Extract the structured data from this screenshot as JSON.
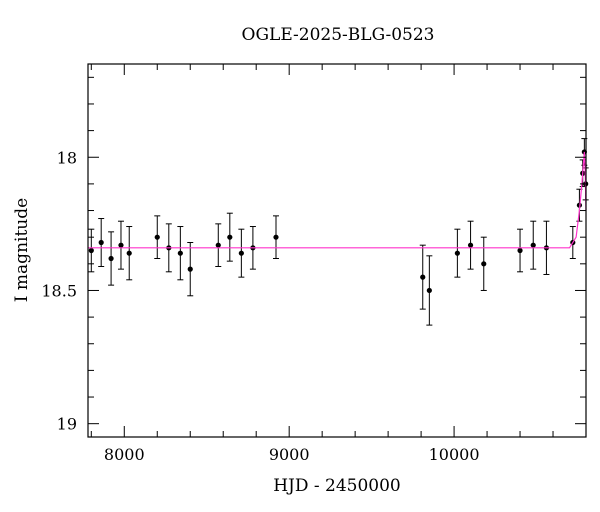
{
  "chart_data": {
    "type": "scatter",
    "title": "OGLE-2025-BLG-0523",
    "xlabel": "HJD - 2450000",
    "ylabel": "I magnitude",
    "xlim": [
      7780,
      10800
    ],
    "ylim": [
      19.05,
      17.65
    ],
    "y_inverted": true,
    "x_ticks": [
      8000,
      9000,
      10000
    ],
    "y_ticks": [
      18,
      18.5,
      19
    ],
    "x_tick_labels": [
      "8000",
      "9000",
      "10000"
    ],
    "y_tick_labels": [
      "18",
      "18.5",
      "19"
    ],
    "grid": false,
    "legend": "none",
    "colors": {
      "points": "#000000",
      "model": "#ff33cc"
    },
    "model_curve": {
      "x": [
        7780,
        10700,
        10740,
        10760,
        10775,
        10785,
        10790,
        10795,
        10800
      ],
      "y": [
        18.34,
        18.34,
        18.3,
        18.2,
        18.1,
        18.02,
        17.98,
        18.05,
        18.2
      ]
    },
    "observations": [
      {
        "x": 7800,
        "y": 18.35,
        "err": 0.08
      },
      {
        "x": 7860,
        "y": 18.32,
        "err": 0.09
      },
      {
        "x": 7920,
        "y": 18.38,
        "err": 0.1
      },
      {
        "x": 7980,
        "y": 18.33,
        "err": 0.09
      },
      {
        "x": 8030,
        "y": 18.36,
        "err": 0.1
      },
      {
        "x": 8200,
        "y": 18.3,
        "err": 0.08
      },
      {
        "x": 8270,
        "y": 18.34,
        "err": 0.09
      },
      {
        "x": 8340,
        "y": 18.36,
        "err": 0.1
      },
      {
        "x": 8400,
        "y": 18.42,
        "err": 0.1
      },
      {
        "x": 8570,
        "y": 18.33,
        "err": 0.08
      },
      {
        "x": 8640,
        "y": 18.3,
        "err": 0.09
      },
      {
        "x": 8710,
        "y": 18.36,
        "err": 0.09
      },
      {
        "x": 8780,
        "y": 18.34,
        "err": 0.08
      },
      {
        "x": 8920,
        "y": 18.3,
        "err": 0.08
      },
      {
        "x": 9810,
        "y": 18.45,
        "err": 0.12
      },
      {
        "x": 9850,
        "y": 18.5,
        "err": 0.13
      },
      {
        "x": 10020,
        "y": 18.36,
        "err": 0.09
      },
      {
        "x": 10100,
        "y": 18.33,
        "err": 0.09
      },
      {
        "x": 10180,
        "y": 18.4,
        "err": 0.1
      },
      {
        "x": 10400,
        "y": 18.35,
        "err": 0.08
      },
      {
        "x": 10480,
        "y": 18.33,
        "err": 0.09
      },
      {
        "x": 10560,
        "y": 18.34,
        "err": 0.1
      },
      {
        "x": 10720,
        "y": 18.32,
        "err": 0.06
      },
      {
        "x": 10760,
        "y": 18.18,
        "err": 0.06
      },
      {
        "x": 10780,
        "y": 18.06,
        "err": 0.05
      },
      {
        "x": 10790,
        "y": 17.98,
        "err": 0.05
      },
      {
        "x": 10798,
        "y": 18.1,
        "err": 0.06
      }
    ]
  }
}
